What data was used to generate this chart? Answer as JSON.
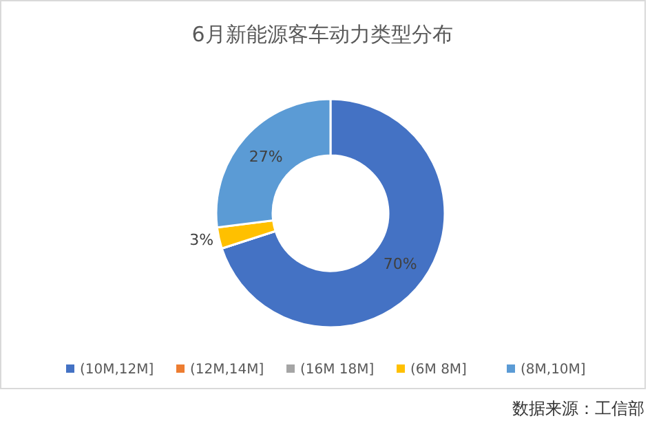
{
  "chart_data": {
    "type": "donut",
    "title": "6月新能源客车动力类型分布",
    "categories": [
      "(10M,12M]",
      "(12M,14M]",
      "(16M 18M]",
      "(6M 8M]",
      "(8M,10M]"
    ],
    "values": [
      70,
      0,
      0,
      3,
      27
    ],
    "colors": [
      "#4472c4",
      "#ed7d31",
      "#a5a5a5",
      "#ffc000",
      "#5b9bd5"
    ],
    "value_labels": [
      "70%",
      null,
      null,
      "3%",
      "27%"
    ],
    "legend": "bottom",
    "annotations": [
      "数据来源：工信部"
    ]
  }
}
